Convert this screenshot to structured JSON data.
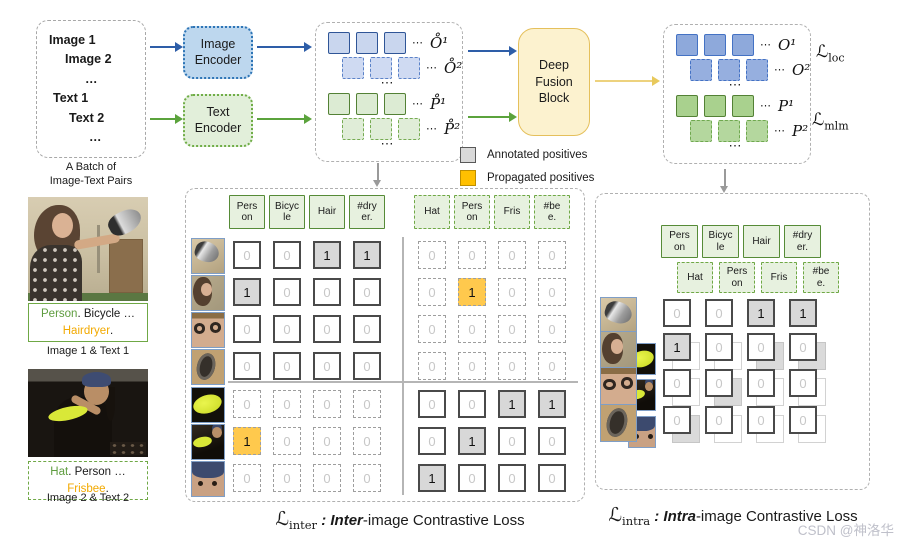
{
  "ellipsis": "⋯",
  "batch": {
    "lines": [
      "Image 1",
      "Image 2",
      "…",
      "Text 1",
      "Text 2",
      "…"
    ],
    "caption": "A Batch of\nImage-Text Pairs"
  },
  "encoders": {
    "image": "Image\nEncoder",
    "text": "Text\nEncoder"
  },
  "fusion": {
    "label": "Deep\nFusion\nBlock"
  },
  "features_pre": {
    "rows": [
      {
        "type": "squares",
        "color": "blue",
        "style": "solid",
        "label": "O̊¹"
      },
      {
        "type": "squares",
        "color": "blue",
        "style": "dashed",
        "label": "O̊²"
      },
      {
        "type": "dots"
      },
      {
        "type": "squares",
        "color": "green",
        "style": "solid",
        "label": "P̊¹"
      },
      {
        "type": "squares",
        "color": "green",
        "style": "dashed",
        "label": "P̊²"
      },
      {
        "type": "dots"
      }
    ]
  },
  "features_post": {
    "rows": [
      {
        "type": "squares",
        "color": "blue",
        "style": "solid",
        "label": "O¹"
      },
      {
        "type": "squares",
        "color": "blue",
        "style": "dashed",
        "label": "O²"
      },
      {
        "type": "dots"
      },
      {
        "type": "squares",
        "color": "green",
        "style": "solid",
        "label": "P¹"
      },
      {
        "type": "squares",
        "color": "green",
        "style": "dashed",
        "label": "P²"
      },
      {
        "type": "dots"
      }
    ]
  },
  "losses": {
    "sym": "ℒ",
    "loc": "loc",
    "mlm": "mlm"
  },
  "legend": {
    "annotated": "Annotated positives",
    "propagated": "Propagated positives"
  },
  "examples": [
    {
      "caption": [
        {
          "t": "Person",
          "c": "green"
        },
        {
          "t": ". Bicycle … ",
          "c": "dark"
        },
        {
          "t": "Hairdryer",
          "c": "orange"
        },
        {
          "t": ".",
          "c": "dark"
        }
      ],
      "label": "Image 1 & Text 1"
    },
    {
      "caption": [
        {
          "t": "Hat",
          "c": "green"
        },
        {
          "t": ". Person … ",
          "c": "dark"
        },
        {
          "t": "Frisbee",
          "c": "orange"
        },
        {
          "t": ".",
          "c": "dark"
        }
      ],
      "label": "Image 2 & Text 2"
    }
  ],
  "inter_matrix": {
    "tokens_solid": [
      "Pers\non",
      "Bicyc\nle",
      "Hair",
      "#dry\ner."
    ],
    "tokens_dashed": [
      "Hat",
      "Pers\non",
      "Fris",
      "#be\ne."
    ],
    "rows": [
      {
        "thumb": "hairdryer",
        "cells": [
          {
            "v": 0,
            "b": "solid"
          },
          {
            "v": 0,
            "b": "solid"
          },
          {
            "v": 1,
            "b": "solid",
            "f": "gray"
          },
          {
            "v": 1,
            "b": "solid",
            "f": "gray"
          },
          {
            "v": 0,
            "b": "dashed"
          },
          {
            "v": 0,
            "b": "dashed"
          },
          {
            "v": 0,
            "b": "dashed"
          },
          {
            "v": 0,
            "b": "dashed"
          }
        ]
      },
      {
        "thumb": "woman",
        "cells": [
          {
            "v": 1,
            "b": "solid",
            "f": "gray"
          },
          {
            "v": 0,
            "b": "solid"
          },
          {
            "v": 0,
            "b": "solid"
          },
          {
            "v": 0,
            "b": "solid"
          },
          {
            "v": 0,
            "b": "dashed"
          },
          {
            "v": 1,
            "b": "dashed",
            "f": "yellow"
          },
          {
            "v": 0,
            "b": "dashed"
          },
          {
            "v": 0,
            "b": "dashed"
          }
        ]
      },
      {
        "thumb": "glasses",
        "cells": [
          {
            "v": 0,
            "b": "solid"
          },
          {
            "v": 0,
            "b": "solid"
          },
          {
            "v": 0,
            "b": "solid"
          },
          {
            "v": 0,
            "b": "solid"
          },
          {
            "v": 0,
            "b": "dashed"
          },
          {
            "v": 0,
            "b": "dashed"
          },
          {
            "v": 0,
            "b": "dashed"
          },
          {
            "v": 0,
            "b": "dashed"
          }
        ]
      },
      {
        "thumb": "wheel",
        "cells": [
          {
            "v": 0,
            "b": "solid"
          },
          {
            "v": 0,
            "b": "solid"
          },
          {
            "v": 0,
            "b": "solid"
          },
          {
            "v": 0,
            "b": "solid"
          },
          {
            "v": 0,
            "b": "dashed"
          },
          {
            "v": 0,
            "b": "dashed"
          },
          {
            "v": 0,
            "b": "dashed"
          },
          {
            "v": 0,
            "b": "dashed"
          }
        ]
      },
      {
        "thumb": "frisbee",
        "cells": [
          {
            "v": 0,
            "b": "dashed"
          },
          {
            "v": 0,
            "b": "dashed"
          },
          {
            "v": 0,
            "b": "dashed"
          },
          {
            "v": 0,
            "b": "dashed"
          },
          {
            "v": 0,
            "b": "solid"
          },
          {
            "v": 0,
            "b": "solid"
          },
          {
            "v": 1,
            "b": "solid",
            "f": "gray"
          },
          {
            "v": 1,
            "b": "solid",
            "f": "gray"
          }
        ]
      },
      {
        "thumb": "man-frisbee",
        "cells": [
          {
            "v": 1,
            "b": "dashed",
            "f": "yellow"
          },
          {
            "v": 0,
            "b": "dashed"
          },
          {
            "v": 0,
            "b": "dashed"
          },
          {
            "v": 0,
            "b": "dashed"
          },
          {
            "v": 0,
            "b": "solid"
          },
          {
            "v": 1,
            "b": "solid",
            "f": "gray"
          },
          {
            "v": 0,
            "b": "solid"
          },
          {
            "v": 0,
            "b": "solid"
          }
        ]
      },
      {
        "thumb": "beanie",
        "cells": [
          {
            "v": 0,
            "b": "dashed"
          },
          {
            "v": 0,
            "b": "dashed"
          },
          {
            "v": 0,
            "b": "dashed"
          },
          {
            "v": 0,
            "b": "dashed"
          },
          {
            "v": 1,
            "b": "solid",
            "f": "gray"
          },
          {
            "v": 0,
            "b": "solid"
          },
          {
            "v": 0,
            "b": "solid"
          },
          {
            "v": 0,
            "b": "solid"
          }
        ]
      }
    ]
  },
  "intra_matrix": {
    "tokens_solid": [
      "Pers\non",
      "Bicyc\nle",
      "Hair",
      "#dry\ner."
    ],
    "tokens_dashed": [
      "Hat",
      "Pers\non",
      "Fris",
      "#be\ne."
    ],
    "rows": [
      {
        "thumb": "hairdryer",
        "back_thumb": null,
        "front": [
          {
            "v": 0
          },
          {
            "v": 0
          },
          {
            "v": 1,
            "f": "gray"
          },
          {
            "v": 1,
            "f": "gray"
          }
        ],
        "back": null
      },
      {
        "thumb": "woman",
        "back_thumb": "frisbee",
        "front": [
          {
            "v": 1,
            "f": "gray"
          },
          {
            "v": 0
          },
          {
            "v": 0
          },
          {
            "v": 0
          }
        ],
        "back": [
          0,
          0,
          1,
          1
        ]
      },
      {
        "thumb": "glasses",
        "back_thumb": "man-frisbee",
        "front": [
          {
            "v": 0
          },
          {
            "v": 0
          },
          {
            "v": 0
          },
          {
            "v": 0
          }
        ],
        "back": [
          0,
          1,
          0,
          0
        ]
      },
      {
        "thumb": "wheel",
        "back_thumb": "beanie",
        "front": [
          {
            "v": 0
          },
          {
            "v": 0
          },
          {
            "v": 0
          },
          {
            "v": 0
          }
        ],
        "back": [
          1,
          0,
          0,
          0
        ]
      }
    ]
  },
  "loss_captions": {
    "inter": {
      "sym": "ℒ",
      "sub": "inter",
      "sep": " : ",
      "emph": "Inter",
      "rest": "-image Contrastive Loss"
    },
    "intra": {
      "sym": "ℒ",
      "sub": "intra",
      "sep": " : ",
      "emph": "Intra",
      "rest": "-image Contrastive Loss"
    }
  },
  "watermark": "CSDN @神洛华"
}
